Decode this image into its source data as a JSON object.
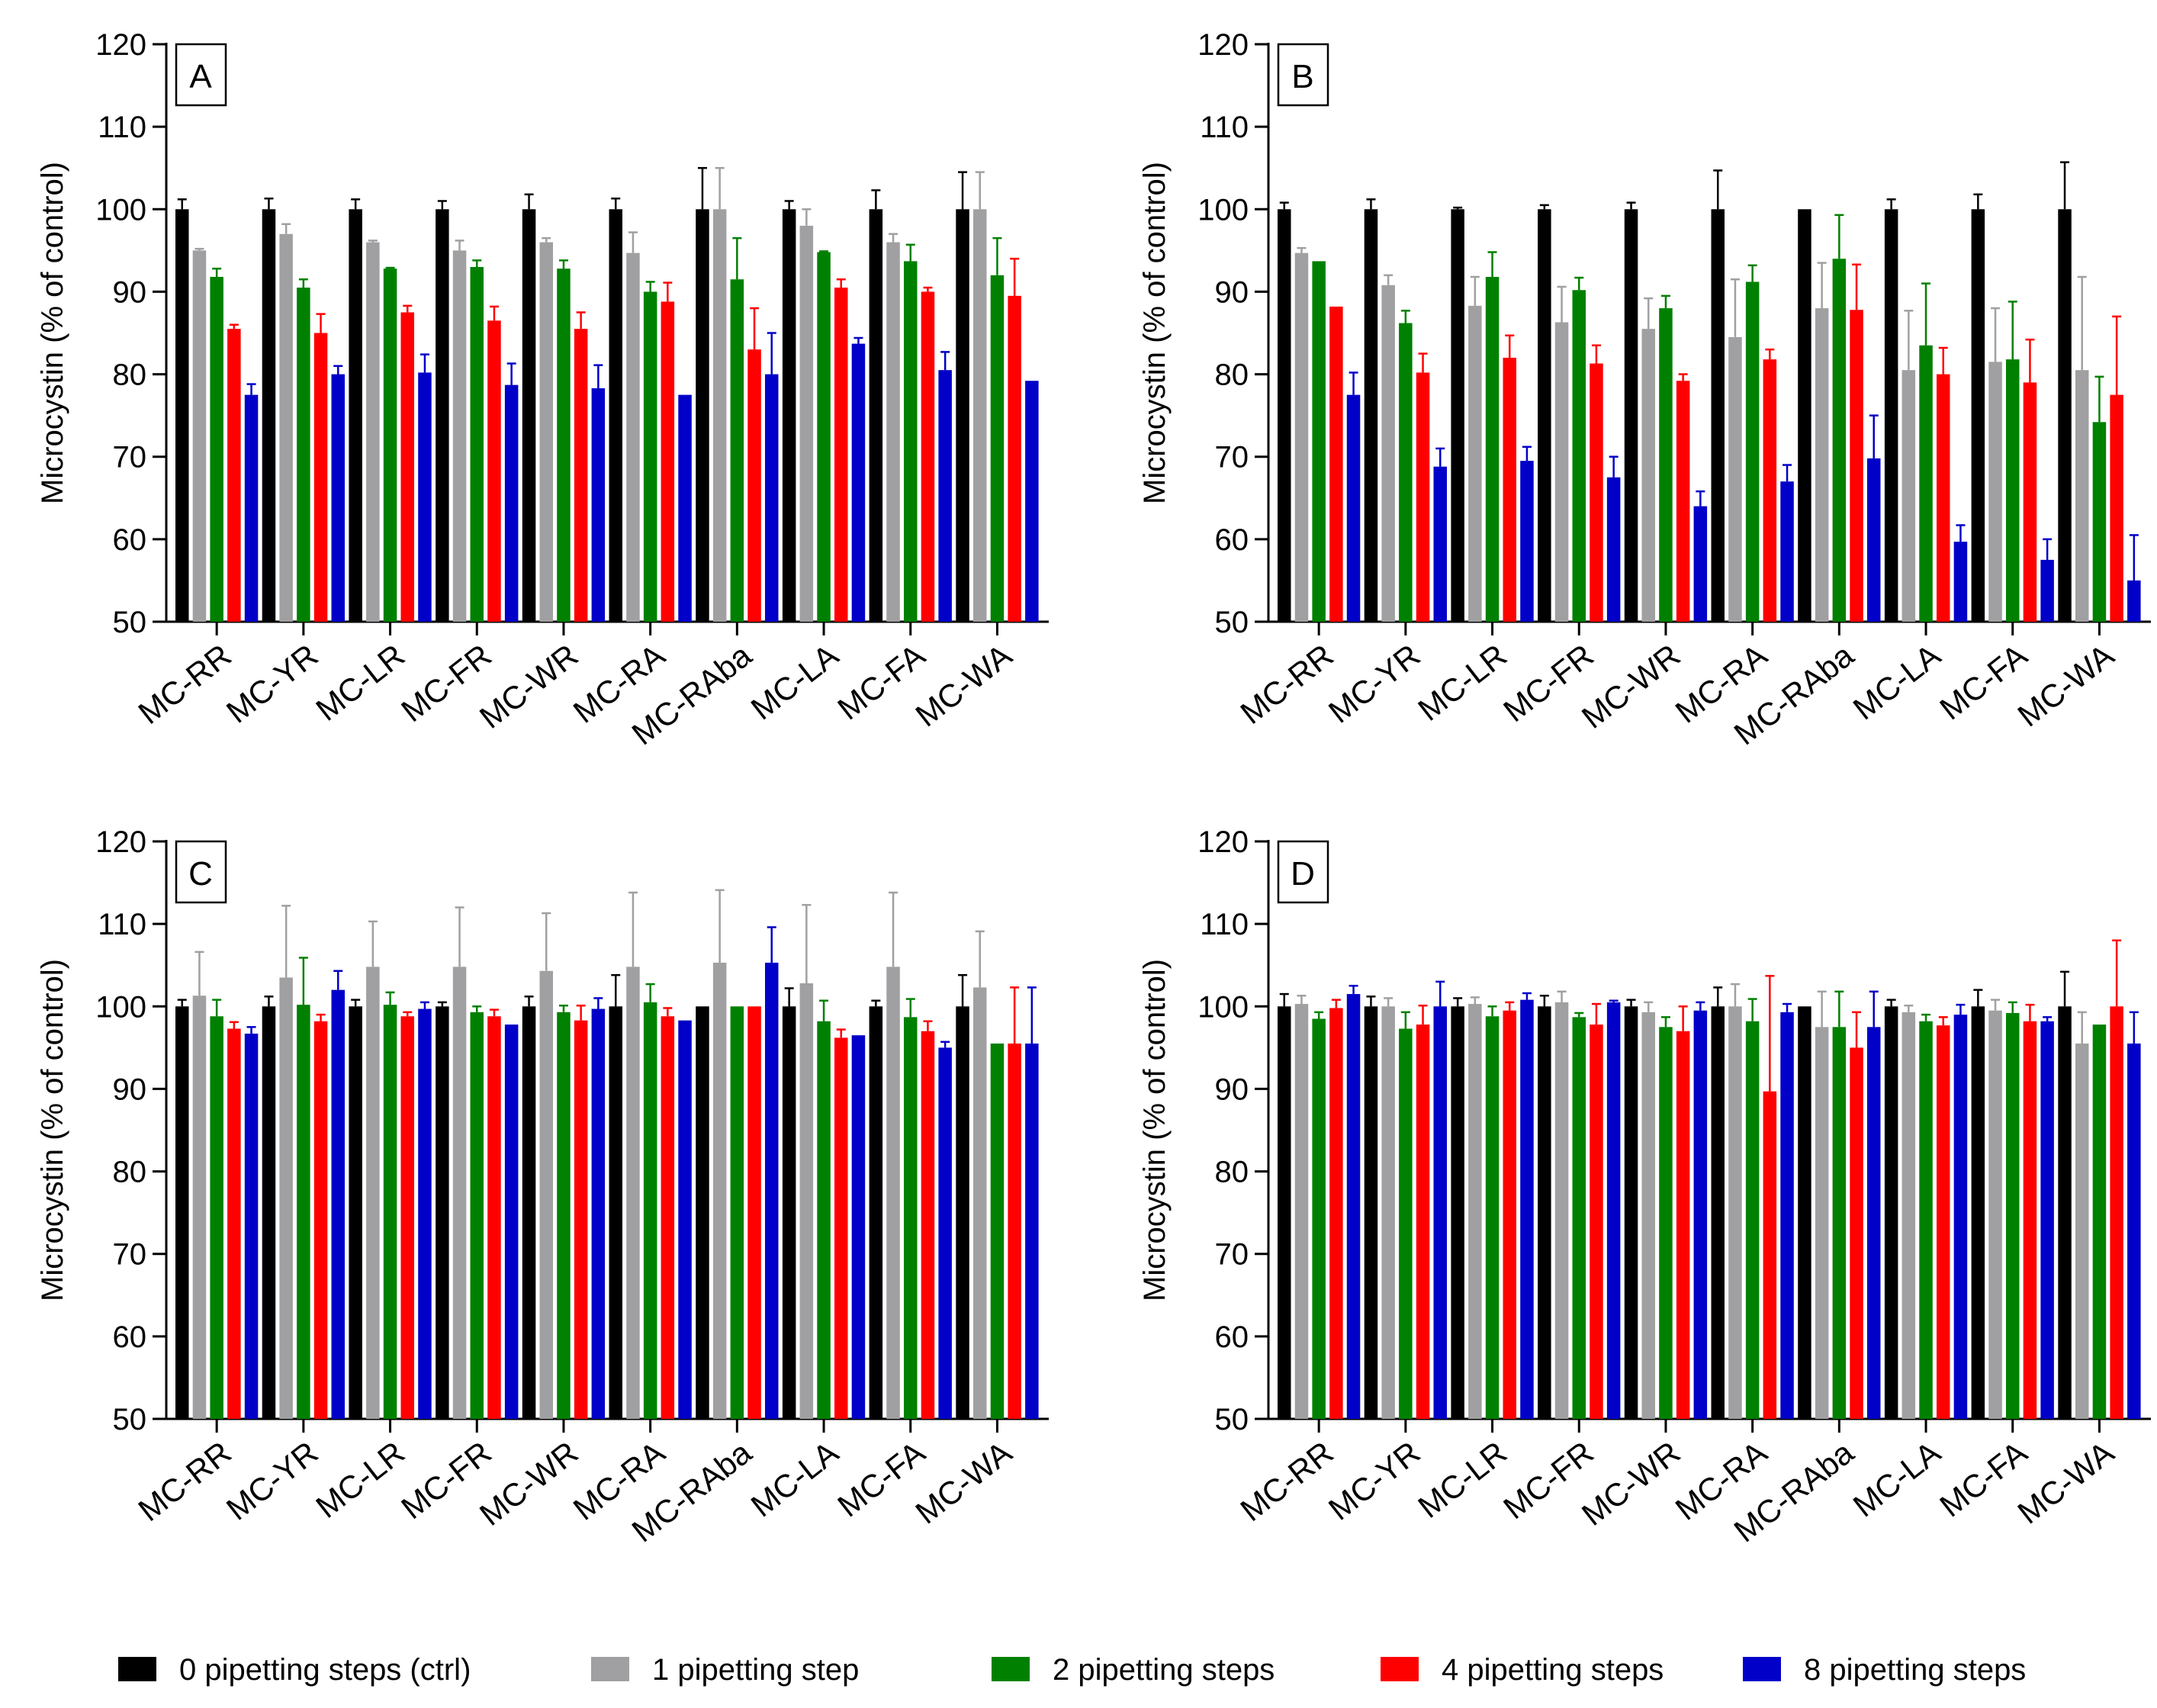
{
  "figure": {
    "legend": [
      {
        "label": "0 pipetting steps (ctrl)",
        "color": "#000000"
      },
      {
        "label": "1 pipetting step",
        "color": "#a0a0a2"
      },
      {
        "label": "2 pipetting steps",
        "color": "#008000"
      },
      {
        "label": "4 pipetting steps",
        "color": "#ff0000"
      },
      {
        "label": "8 pipetting steps",
        "color": "#0000c8"
      }
    ]
  },
  "chart_data": [
    {
      "type": "bar",
      "panel_label": "A",
      "ylabel": "Microcystin  (% of control)",
      "xlabel": "",
      "ylim": [
        50,
        120
      ],
      "yticks": [
        "50",
        "60",
        "70",
        "80",
        "90",
        "100",
        "110",
        "120"
      ],
      "categories": [
        "MC-RR",
        "MC-YR",
        "MC-LR",
        "MC-FR",
        "MC-WR",
        "MC-RA",
        "MC-RAba",
        "MC-LA",
        "MC-FA",
        "MC-WA"
      ],
      "series": [
        {
          "name": "0 pipetting steps (ctrl)",
          "values": [
            100,
            100,
            100,
            100,
            100,
            100,
            100,
            100,
            100,
            100
          ],
          "errors": [
            1.2,
            1.3,
            1.2,
            1.0,
            1.8,
            1.3,
            5,
            1.0,
            2.3,
            4.5
          ]
        },
        {
          "name": "1 pipetting step",
          "values": [
            95,
            97,
            96,
            95,
            96,
            94.7,
            100,
            98,
            96,
            100
          ],
          "errors": [
            0.2,
            1.2,
            0.2,
            1.2,
            0.5,
            2.5,
            5,
            2.0,
            1.0,
            4.5
          ]
        },
        {
          "name": "2 pipetting steps",
          "values": [
            91.8,
            90.5,
            92.8,
            93,
            92.8,
            90,
            91.5,
            94.8,
            93.7,
            92
          ],
          "errors": [
            1.0,
            1.0,
            0.1,
            0.8,
            1.0,
            1.2,
            5,
            0.1,
            2.0,
            4.5
          ]
        },
        {
          "name": "4 pipetting steps",
          "values": [
            85.5,
            85,
            87.5,
            86.5,
            85.5,
            88.8,
            83,
            90.5,
            90,
            89.5
          ],
          "errors": [
            0.5,
            2.3,
            0.8,
            1.7,
            2.0,
            2.3,
            5,
            1.0,
            0.5,
            4.5
          ]
        },
        {
          "name": "8 pipetting steps",
          "values": [
            77.5,
            80,
            80.2,
            78.7,
            78.3,
            77.5,
            80,
            83.7,
            80.5,
            79.2
          ],
          "errors": [
            1.3,
            1.0,
            2.2,
            2.6,
            2.8,
            0,
            5,
            0.7,
            2.2,
            0
          ]
        }
      ]
    },
    {
      "type": "bar",
      "panel_label": "B",
      "ylabel": "Microcystin  (% of control)",
      "xlabel": "",
      "ylim": [
        50,
        120
      ],
      "yticks": [
        "50",
        "60",
        "70",
        "80",
        "90",
        "100",
        "110",
        "120"
      ],
      "categories": [
        "MC-RR",
        "MC-YR",
        "MC-LR",
        "MC-FR",
        "MC-WR",
        "MC-RA",
        "MC-RAba",
        "MC-LA",
        "MC-FA",
        "MC-WA"
      ],
      "series": [
        {
          "name": "0 pipetting steps (ctrl)",
          "values": [
            100,
            100,
            100,
            100,
            100,
            100,
            100,
            100,
            100,
            100
          ],
          "errors": [
            0.8,
            1.2,
            0.2,
            0.5,
            0.8,
            4.7,
            0,
            1.2,
            1.8,
            5.7
          ]
        },
        {
          "name": "1 pipetting step",
          "values": [
            94.7,
            90.8,
            88.3,
            86.3,
            85.5,
            84.5,
            88,
            80.5,
            81.5,
            80.5
          ],
          "errors": [
            0.6,
            1.2,
            3.5,
            4.3,
            3.7,
            7,
            5.5,
            7.2,
            6.5,
            11.3
          ]
        },
        {
          "name": "2 pipetting steps",
          "values": [
            93.7,
            86.2,
            91.8,
            90.2,
            88,
            91.2,
            94,
            83.5,
            81.8,
            74.2
          ],
          "errors": [
            0,
            1.5,
            3.0,
            1.5,
            1.5,
            2.0,
            5.3,
            7.5,
            7.0,
            5.5
          ]
        },
        {
          "name": "4 pipetting steps",
          "values": [
            88.2,
            80.2,
            82,
            81.3,
            79.2,
            81.8,
            87.8,
            80,
            79,
            77.5
          ],
          "errors": [
            0,
            2.3,
            2.7,
            2.2,
            0.8,
            1.2,
            5.5,
            3.2,
            5.2,
            9.5
          ]
        },
        {
          "name": "8 pipetting steps",
          "values": [
            77.5,
            68.8,
            69.5,
            67.5,
            64,
            67,
            69.8,
            59.7,
            57.5,
            55
          ],
          "errors": [
            2.7,
            2.2,
            1.7,
            2.5,
            1.8,
            2.0,
            5.2,
            2.0,
            2.5,
            5.5
          ]
        }
      ]
    },
    {
      "type": "bar",
      "panel_label": "C",
      "ylabel": "Microcystin  (% of control)",
      "xlabel": "",
      "ylim": [
        50,
        120
      ],
      "yticks": [
        "50",
        "60",
        "70",
        "80",
        "90",
        "100",
        "110",
        "120"
      ],
      "categories": [
        "MC-RR",
        "MC-YR",
        "MC-LR",
        "MC-FR",
        "MC-WR",
        "MC-RA",
        "MC-RAba",
        "MC-LA",
        "MC-FA",
        "MC-WA"
      ],
      "series": [
        {
          "name": "0 pipetting steps (ctrl)",
          "values": [
            100,
            100,
            100,
            100,
            100,
            100,
            100,
            100,
            100,
            100
          ],
          "errors": [
            0.8,
            1.2,
            0.8,
            0.5,
            1.2,
            3.8,
            0,
            2.2,
            0.7,
            3.8
          ]
        },
        {
          "name": "1 pipetting step",
          "values": [
            101.3,
            103.5,
            104.8,
            104.8,
            104.3,
            104.8,
            105.3,
            102.8,
            104.8,
            102.3
          ],
          "errors": [
            5.3,
            8.7,
            5.5,
            7.2,
            7.0,
            9.0,
            8.8,
            9.5,
            9.0,
            6.8
          ]
        },
        {
          "name": "2 pipetting steps",
          "values": [
            98.8,
            100.2,
            100.2,
            99.3,
            99.3,
            100.5,
            100,
            98.2,
            98.7,
            95.5
          ],
          "errors": [
            2.0,
            5.7,
            1.5,
            0.7,
            0.8,
            2.2,
            0,
            2.5,
            2.2,
            0
          ]
        },
        {
          "name": "4 pipetting steps",
          "values": [
            97.3,
            98.2,
            98.8,
            98.8,
            98.3,
            98.8,
            100,
            96.2,
            97,
            95.5
          ],
          "errors": [
            0.8,
            0.8,
            0.5,
            0.8,
            1.8,
            1.0,
            0,
            1.0,
            1.2,
            6.8
          ]
        },
        {
          "name": "8 pipetting steps",
          "values": [
            96.7,
            102,
            99.7,
            97.8,
            99.7,
            98.3,
            105.3,
            96.5,
            95,
            95.5
          ],
          "errors": [
            0.8,
            2.3,
            0.8,
            0,
            1.3,
            0,
            4.3,
            0,
            0.7,
            6.8
          ]
        }
      ]
    },
    {
      "type": "bar",
      "panel_label": "D",
      "ylabel": "Microcystin  (% of control)",
      "xlabel": "",
      "ylim": [
        50,
        120
      ],
      "yticks": [
        "50",
        "60",
        "70",
        "80",
        "90",
        "100",
        "110",
        "120"
      ],
      "categories": [
        "MC-RR",
        "MC-YR",
        "MC-LR",
        "MC-FR",
        "MC-WR",
        "MC-RA",
        "MC-RAba",
        "MC-LA",
        "MC-FA",
        "MC-WA"
      ],
      "series": [
        {
          "name": "0 pipetting steps (ctrl)",
          "values": [
            100,
            100,
            100,
            100,
            100,
            100,
            100,
            100,
            100,
            100
          ],
          "errors": [
            1.5,
            1.2,
            1.0,
            1.3,
            0.8,
            2.3,
            0,
            0.8,
            2.0,
            4.2
          ]
        },
        {
          "name": "1 pipetting step",
          "values": [
            100.3,
            100,
            100.3,
            100.5,
            99.3,
            100,
            97.5,
            99.3,
            99.5,
            95.5
          ],
          "errors": [
            1.0,
            1.0,
            0.8,
            1.3,
            1.2,
            2.7,
            4.3,
            0.8,
            1.3,
            3.8
          ]
        },
        {
          "name": "2 pipetting steps",
          "values": [
            98.5,
            97.3,
            98.8,
            98.7,
            97.5,
            98.2,
            97.5,
            98.2,
            99.2,
            97.8
          ],
          "errors": [
            0.8,
            2.0,
            1.2,
            0.5,
            1.2,
            2.7,
            4.3,
            0.8,
            1.3,
            0
          ]
        },
        {
          "name": "4 pipetting steps",
          "values": [
            99.8,
            97.8,
            99.5,
            97.8,
            97,
            89.7,
            95,
            97.7,
            98.2,
            100
          ],
          "errors": [
            1.0,
            2.3,
            1.0,
            2.5,
            3.0,
            14.0,
            4.3,
            1.0,
            2.0,
            8.0
          ]
        },
        {
          "name": "8 pipetting steps",
          "values": [
            101.5,
            100,
            100.8,
            100.5,
            99.5,
            99.3,
            97.5,
            99,
            98.2,
            95.5
          ],
          "errors": [
            1.0,
            3.0,
            0.8,
            0.2,
            1.0,
            1.0,
            4.3,
            1.2,
            0.5,
            3.8
          ]
        }
      ]
    }
  ]
}
